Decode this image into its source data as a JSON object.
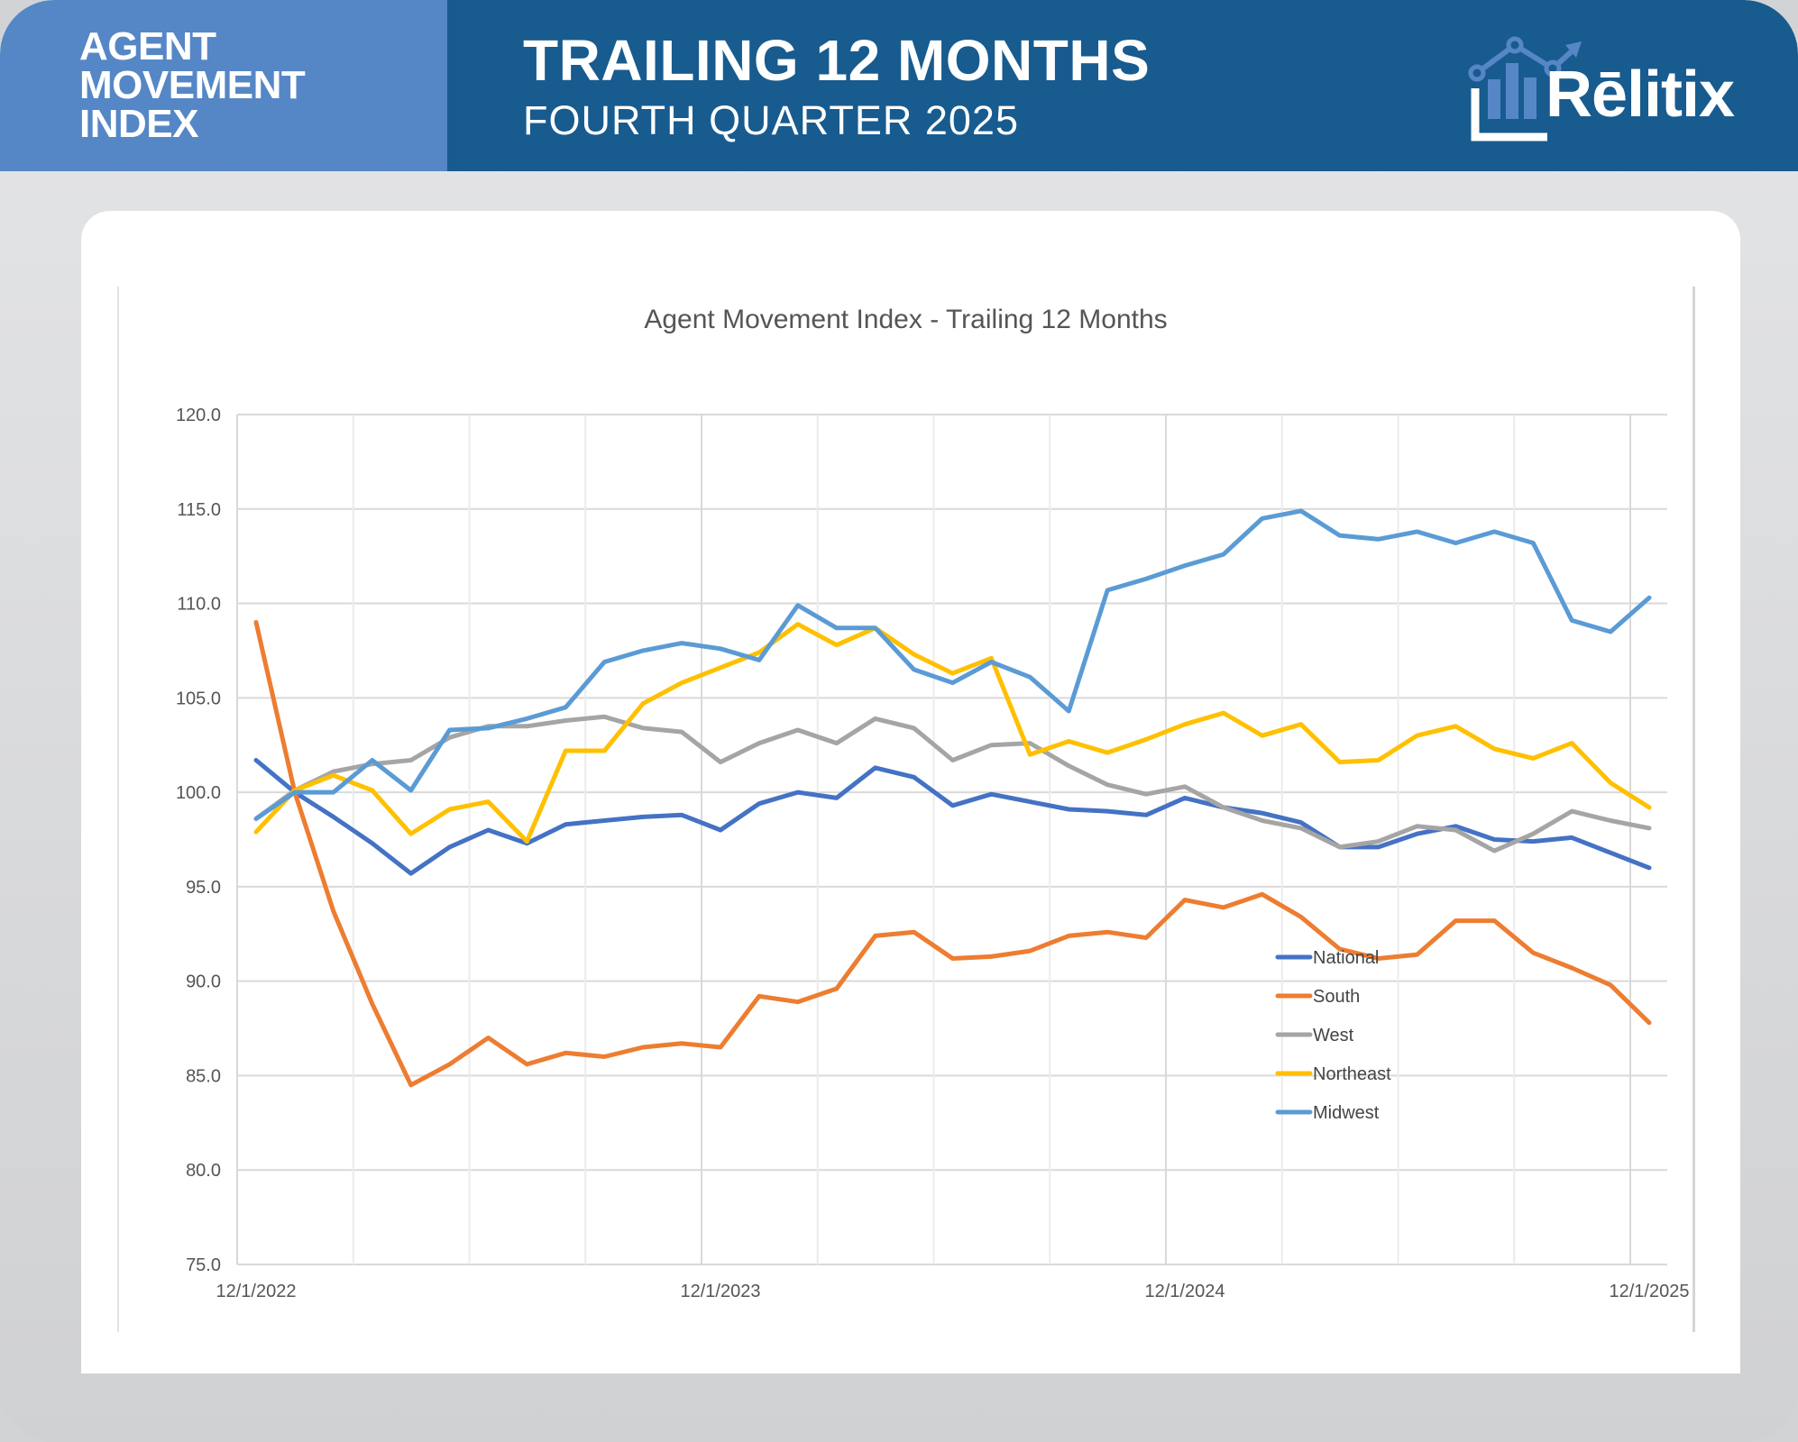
{
  "header": {
    "left_title_lines": [
      "AGENT",
      "MOVEMENT",
      "INDEX"
    ],
    "title": "TRAILING 12 MONTHS",
    "subtitle": "FOURTH QUARTER 2025",
    "logo_text": "Rēlitix"
  },
  "colors": {
    "header_left": "#5587c6",
    "header_right": "#185b8f",
    "National": "#4472c4",
    "South": "#ed7d31",
    "West": "#a5a5a5",
    "Northeast": "#ffc000",
    "Midwest": "#5b9bd5"
  },
  "chart_data": {
    "type": "line",
    "title": "Agent Movement Index - Trailing 12 Months",
    "xlabel": "",
    "ylabel": "",
    "ylim": [
      75,
      120
    ],
    "yticks": [
      "75.0",
      "80.0",
      "85.0",
      "90.0",
      "95.0",
      "100.0",
      "105.0",
      "110.0",
      "115.0",
      "120.0"
    ],
    "xtick_labels": [
      "12/1/2022",
      "12/1/2023",
      "12/1/2024",
      "12/1/2025"
    ],
    "x_start": "12/1/2022",
    "x_end": "12/1/2025",
    "x_frequency": "monthly",
    "grid": true,
    "legend_position": "inside-bottom-right",
    "series": [
      {
        "name": "National",
        "values": [
          101.7,
          100.0,
          98.7,
          97.3,
          95.7,
          97.1,
          98.0,
          97.3,
          98.3,
          98.5,
          98.7,
          98.8,
          98.0,
          99.4,
          100.0,
          99.7,
          101.3,
          100.8,
          99.3,
          99.9,
          99.5,
          99.1,
          99.0,
          98.8,
          99.7,
          99.2,
          98.9,
          98.4,
          97.1,
          97.1,
          97.8,
          98.2,
          97.5,
          97.4,
          97.6,
          96.8,
          96.0
        ]
      },
      {
        "name": "South",
        "values": [
          109.0,
          100.0,
          93.7,
          88.8,
          84.5,
          85.6,
          87.0,
          85.6,
          86.2,
          86.0,
          86.5,
          86.7,
          86.5,
          89.2,
          88.9,
          89.6,
          92.4,
          92.6,
          91.2,
          91.3,
          91.6,
          92.4,
          92.6,
          92.3,
          94.3,
          93.9,
          94.6,
          93.4,
          91.7,
          91.2,
          91.4,
          93.2,
          93.2,
          91.5,
          90.7,
          89.8,
          87.8
        ]
      },
      {
        "name": "West",
        "values": [
          98.6,
          100.1,
          101.1,
          101.5,
          101.7,
          102.9,
          103.5,
          103.5,
          103.8,
          104.0,
          103.4,
          103.2,
          101.6,
          102.6,
          103.3,
          102.6,
          103.9,
          103.4,
          101.7,
          102.5,
          102.6,
          101.4,
          100.4,
          99.9,
          100.3,
          99.2,
          98.5,
          98.1,
          97.1,
          97.4,
          98.2,
          98.0,
          96.9,
          97.8,
          99.0,
          98.5,
          98.1
        ]
      },
      {
        "name": "Northeast",
        "values": [
          97.9,
          100.1,
          100.9,
          100.1,
          97.8,
          99.1,
          99.5,
          97.4,
          102.2,
          102.2,
          104.7,
          105.8,
          106.6,
          107.4,
          108.9,
          107.8,
          108.7,
          107.3,
          106.3,
          107.1,
          102.0,
          102.7,
          102.1,
          102.8,
          103.6,
          104.2,
          103.0,
          103.6,
          101.6,
          101.7,
          103.0,
          103.5,
          102.3,
          101.8,
          102.6,
          100.5,
          99.2
        ]
      },
      {
        "name": "Midwest",
        "values": [
          98.6,
          100.0,
          100.0,
          101.7,
          100.1,
          103.3,
          103.4,
          103.9,
          104.5,
          106.9,
          107.5,
          107.9,
          107.6,
          107.0,
          109.9,
          108.7,
          108.7,
          106.5,
          105.8,
          106.9,
          106.1,
          104.3,
          110.7,
          111.3,
          112.0,
          112.6,
          114.5,
          114.9,
          113.6,
          113.4,
          113.8,
          113.2,
          113.8,
          113.2,
          109.1,
          108.5,
          110.3
        ]
      }
    ]
  }
}
